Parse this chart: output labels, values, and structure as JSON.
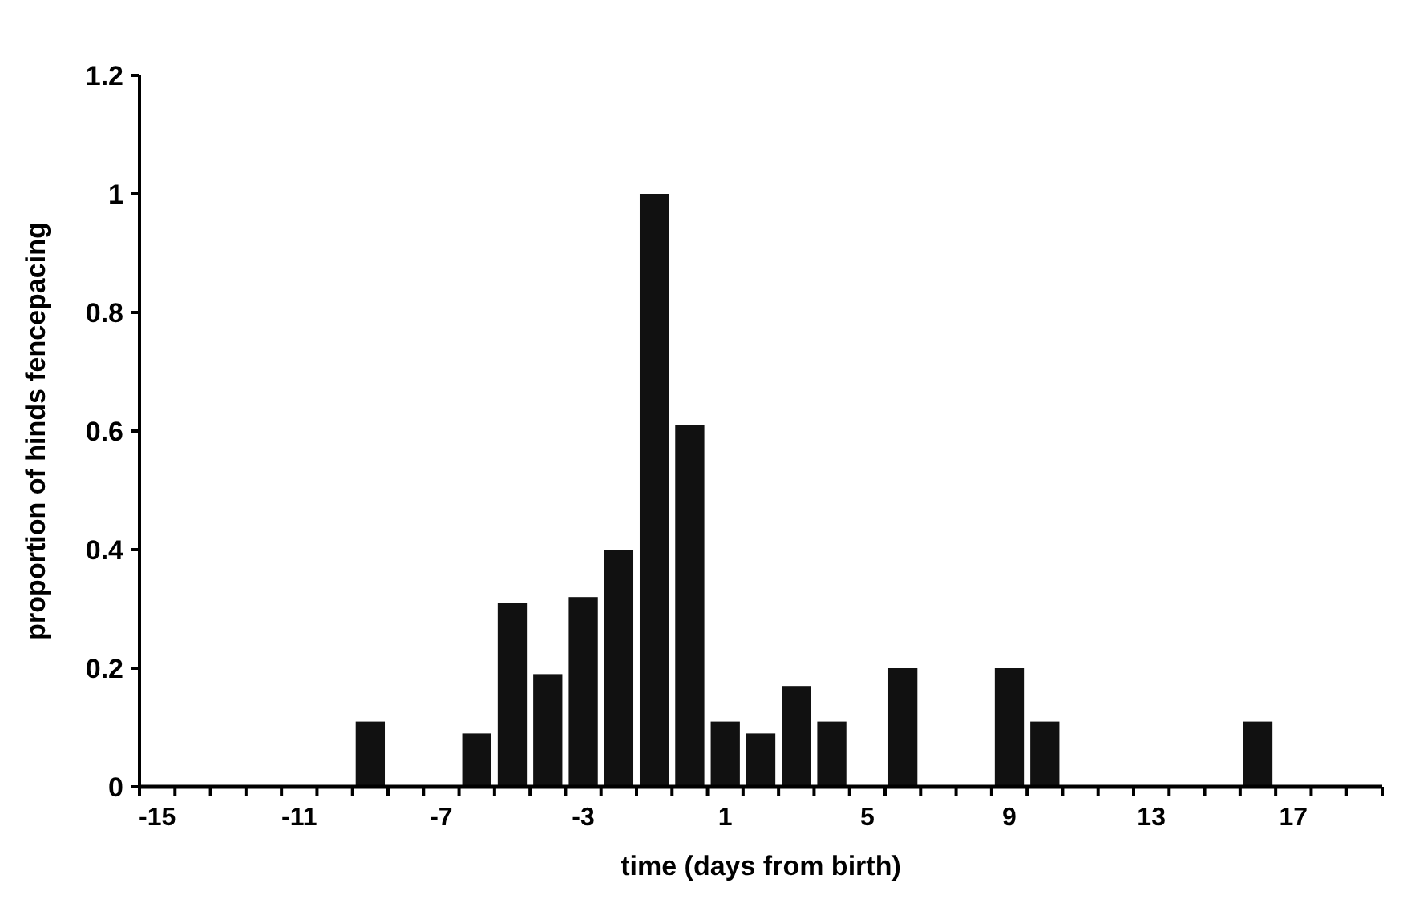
{
  "chart_data": {
    "type": "bar",
    "xlabel": "time (days from birth)",
    "ylabel": "proportion of hinds fencepacing",
    "categories": [
      "-15",
      null,
      null,
      null,
      "-11",
      null,
      null,
      null,
      "-7",
      null,
      null,
      null,
      "-3",
      null,
      null,
      null,
      "1",
      null,
      null,
      null,
      "5",
      null,
      null,
      null,
      "9",
      null,
      null,
      null,
      "13",
      null,
      null,
      null,
      "17",
      null,
      null
    ],
    "values": [
      0,
      0,
      0,
      0,
      0,
      0,
      0.11,
      0,
      0,
      0.09,
      0.31,
      0.19,
      0.32,
      0.4,
      1.0,
      0.61,
      0.11,
      0.09,
      0.17,
      0.11,
      0,
      0.2,
      0,
      0,
      0.2,
      0.11,
      0,
      0,
      0,
      0,
      0,
      0.11,
      0,
      0,
      0
    ],
    "color": "#111111",
    "ylim": [
      0,
      1.2
    ],
    "yticks": [
      0,
      0.2,
      0.4,
      0.6,
      0.8,
      1,
      1.2
    ],
    "grid": false
  }
}
